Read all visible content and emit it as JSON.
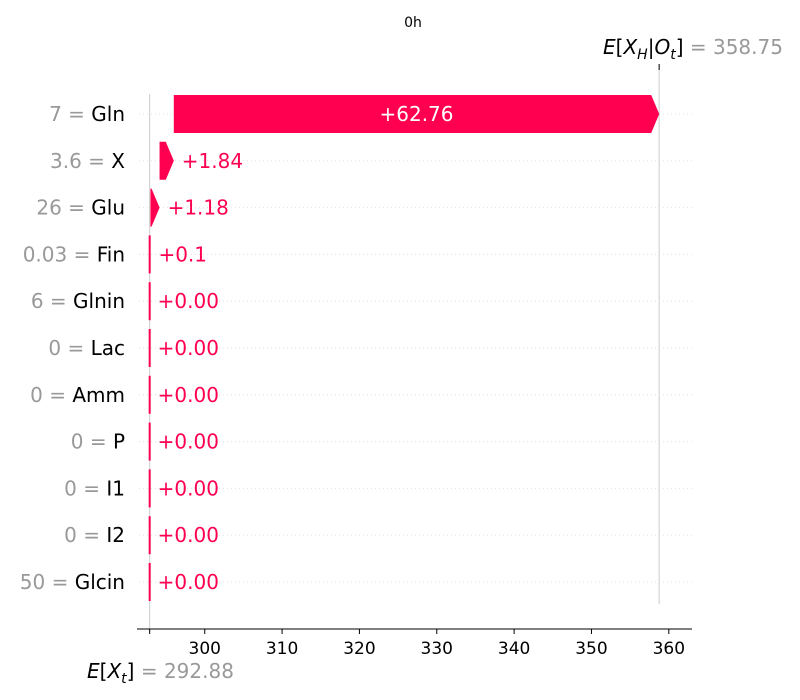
{
  "chart_data": {
    "type": "waterfall",
    "title": "0h",
    "base_value": 292.88,
    "base_label": "E[X_t]",
    "final_value": 358.75,
    "final_label": "E[X_H|O_t]",
    "xlim": [
      291.5,
      363
    ],
    "xticks": [
      300,
      310,
      320,
      330,
      340,
      350,
      360
    ],
    "positive_color": "#ff0051",
    "features": [
      {
        "feature_value": "7",
        "name": "Gln",
        "contribution": 62.76,
        "label": "+62.76"
      },
      {
        "feature_value": "3.6",
        "name": "X",
        "contribution": 1.84,
        "label": "+1.84"
      },
      {
        "feature_value": "26",
        "name": "Glu",
        "contribution": 1.18,
        "label": "+1.18"
      },
      {
        "feature_value": "0.03",
        "name": "Fin",
        "contribution": 0.1,
        "label": "+0.1"
      },
      {
        "feature_value": "6",
        "name": "Glnin",
        "contribution": 0.0,
        "label": "+0.00"
      },
      {
        "feature_value": "0",
        "name": "Lac",
        "contribution": 0.0,
        "label": "+0.00"
      },
      {
        "feature_value": "0",
        "name": "Amm",
        "contribution": 0.0,
        "label": "+0.00"
      },
      {
        "feature_value": "0",
        "name": "P",
        "contribution": 0.0,
        "label": "+0.00"
      },
      {
        "feature_value": "0",
        "name": "I1",
        "contribution": 0.0,
        "label": "+0.00"
      },
      {
        "feature_value": "0",
        "name": "I2",
        "contribution": 0.0,
        "label": "+0.00"
      },
      {
        "feature_value": "50",
        "name": "Glcin",
        "contribution": 0.0,
        "label": "+0.00"
      }
    ]
  }
}
